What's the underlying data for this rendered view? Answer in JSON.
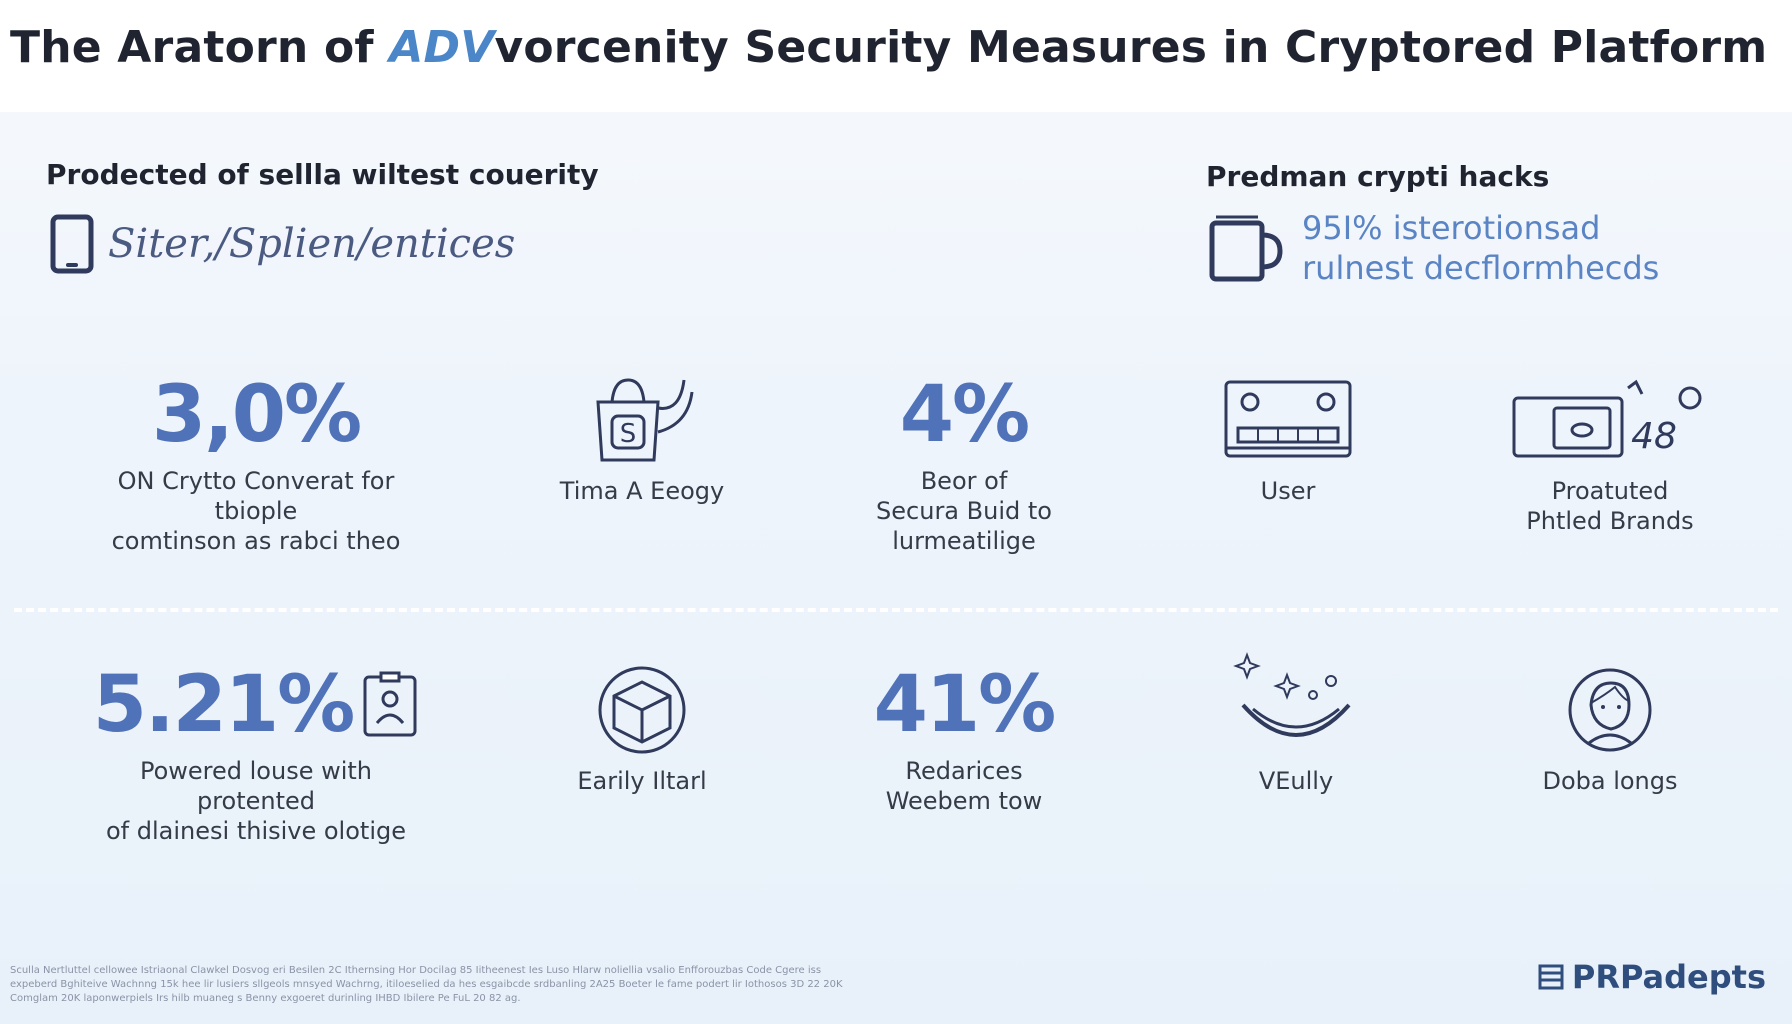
{
  "title": {
    "prefix": "The Aratorn of ",
    "accent": "ADV",
    "suffix": "vorcenity Security Measures in Cryptored Platform"
  },
  "left_header": {
    "heading": "Prodected of sellla wiltest couerity",
    "subtext": "Siter,/Splien/entices",
    "icon": "tablet-icon"
  },
  "right_header": {
    "heading": "Predman crypti hacks",
    "line1": "95I% isterotionsad",
    "line2": "rulnest decflormhecds",
    "icon": "mug-icon"
  },
  "row1": [
    {
      "big": "3,0%",
      "label_lines": [
        "ON Crytto Converat for tbiople",
        "comtinson as rabci theo"
      ]
    },
    {
      "icon": "shopping-bag-icon",
      "label_lines": [
        "Tima A Eeogy"
      ]
    },
    {
      "big": "4%",
      "label_lines": [
        "Beor of",
        "Secura Buid to",
        "lurmeatilige"
      ]
    },
    {
      "icon": "keyboard-device-icon",
      "label_lines": [
        "User"
      ]
    },
    {
      "icon": "wallet-card-icon",
      "label_lines": [
        "Proatuted",
        "Phtled Brands"
      ]
    }
  ],
  "row2": [
    {
      "big": "5.21%",
      "icon": "id-badge-icon",
      "label_lines": [
        "Powered louse with protented",
        "of dlainesi thisive olotige"
      ]
    },
    {
      "icon": "globe-cube-icon",
      "label_lines": [
        "Earily Iltarl"
      ]
    },
    {
      "big": "41%",
      "label_lines": [
        "Redarices",
        "Weebem tow"
      ]
    },
    {
      "icon": "sparkle-smile-icon",
      "label_lines": [
        "VEully"
      ]
    },
    {
      "icon": "face-portrait-icon",
      "label_lines": [
        "Doba longs"
      ]
    }
  ],
  "footnote": "Sculla Nertluttel cellowee Istriaonal Clawkel Dosvog eri Besilen 2C Ithernsing Hor Docilag 85 Iitheenest Ies Luso Hlarw noliellia vsalio Enfforouzbas Code Cgere iss expeberd Bghiteive Wachnng 15k hee lir lusiers sllgeols mnsyed Wachrng, itiloeselied da hes esgaibcde srdbanling 2A25 Boeter le fame podert lir Iothosos 3D 22 20K Comglam 20K laponwerpiels Irs hilb muaneg s Benny exgoeret durinling IHBD Ibilere Pe FuL 20 82 ag.",
  "brand": "PRPadepts",
  "colors": {
    "accent_blue": "#4f72b8",
    "light_blue": "#5b84c4",
    "dark_text": "#1f2430",
    "icon_navy": "#2f3a5c"
  }
}
